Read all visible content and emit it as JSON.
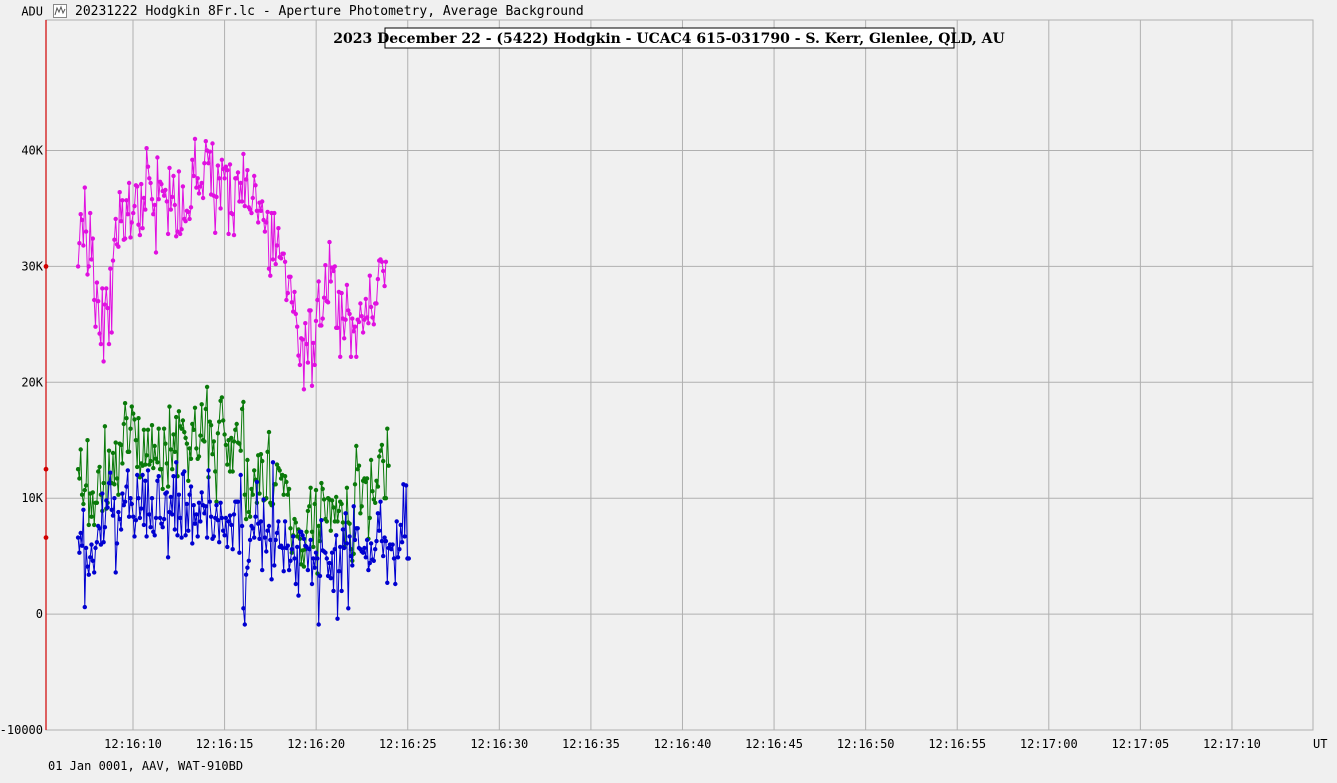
{
  "window": {
    "title": "20231222 Hodgkin 8Fr.lc - Aperture Photometry, Average Background"
  },
  "footer": {
    "text": "01 Jan 0001, AAV, WAT-910BD"
  },
  "colors": {
    "target": "#e010e0",
    "comp": "#0a7a0a",
    "check": "#0000d0",
    "axis": "#d00000",
    "grid": "#b0b0b0"
  },
  "chart_data": {
    "type": "line",
    "title": "2023 December 22 - (5422) Hodgkin - UCAC4 615-031790 - S. Kerr, Glenlee, QLD, AU",
    "ylabel": "ADU",
    "xlabel": "UT",
    "ylim": [
      -10000,
      52000
    ],
    "x_ticks": [
      "12:16:10",
      "12:16:15",
      "12:16:20",
      "12:16:25",
      "12:16:30",
      "12:16:35",
      "12:16:40",
      "12:16:45",
      "12:16:50",
      "12:16:55",
      "12:17:00",
      "12:17:05",
      "12:17:10"
    ],
    "y_ticks": [
      {
        "label": "ADU",
        "value": 52000
      },
      {
        "label": "40K",
        "value": 40000
      },
      {
        "label": "30K",
        "value": 30000
      },
      {
        "label": "20K",
        "value": 20000
      },
      {
        "label": "10K",
        "value": 10000
      },
      {
        "label": "0",
        "value": 0
      },
      {
        "label": "-10000",
        "value": -10000
      }
    ],
    "grid": true,
    "x_start_seconds": 7,
    "sample_seconds": 0.0734,
    "series": [
      {
        "color": "#e010e0",
        "values": [
          30000,
          32000,
          34500,
          34000,
          31800,
          36800,
          33000,
          29300,
          30000,
          34600,
          30600,
          32400,
          27100,
          24800,
          28600,
          27000,
          24200,
          23300,
          28100,
          21800,
          26700,
          28100,
          26400,
          23300,
          29800,
          24300,
          30500,
          32300,
          34100,
          31900,
          31700,
          36400,
          33900,
          35700,
          32300,
          32400,
          35700,
          34500,
          37200,
          32500,
          33800,
          34600,
          35200,
          37000,
          36900,
          33600,
          32700,
          37100,
          33300,
          35900,
          34900,
          40200,
          38600,
          37600,
          37200,
          35800,
          34500,
          35300,
          31200,
          39400,
          35800,
          37300,
          37100,
          36500,
          36100,
          36600,
          35600,
          32800,
          38500,
          34900,
          36000,
          37800,
          35300,
          32600,
          33000,
          38200,
          32800,
          33200,
          36900,
          34100,
          33900,
          34800,
          34700,
          34100,
          35100,
          39200,
          37800,
          41000,
          36800,
          37600,
          36300,
          36900,
          37200,
          35900,
          38900,
          40800,
          40000,
          38900,
          39900,
          36200,
          40600,
          36100,
          32900,
          36000,
          38700,
          37600,
          35000,
          39200,
          38400,
          37600,
          38600,
          38300,
          32800,
          38800,
          34600,
          34500,
          32700,
          37600,
          37600,
          38100,
          35600,
          37200,
          35600,
          39700,
          35200,
          37500,
          38300,
          35100,
          34900,
          34600,
          35900,
          37800,
          37000,
          34800,
          33800,
          35500,
          34800,
          35600,
          34000,
          33000,
          33800,
          34700,
          29800,
          29200,
          34600,
          30600,
          34600,
          30200,
          31800,
          33300,
          30800,
          30700,
          31100,
          31100,
          30400,
          27100,
          27700,
          29100,
          29100,
          26900,
          26100,
          27800,
          25900,
          24800,
          22300,
          21500,
          23800,
          23700,
          19400,
          25100,
          23300,
          21700,
          26200,
          26200,
          19700,
          23400,
          21500,
          25300,
          27100,
          28700,
          24900,
          24900,
          25500,
          27300,
          30100,
          27000,
          26900,
          32100,
          28700,
          29900,
          29600,
          30000,
          24700,
          24700,
          27800,
          22200,
          27700,
          25500,
          23800,
          25400,
          28400,
          26200,
          25900,
          22200,
          25500,
          24400,
          24800,
          22200,
          25400,
          25200,
          26800,
          25700,
          24300,
          25400,
          27200,
          25600,
          25100,
          29200,
          26500,
          25600,
          25000,
          26800,
          26800,
          28900,
          30500,
          30600,
          30400,
          29600,
          28300,
          30400
        ]
      },
      {
        "color": "#0a7a0a",
        "values": [
          12500,
          11700,
          14200,
          10300,
          9500,
          10700,
          11100,
          15000,
          7700,
          10400,
          8400,
          10500,
          7700,
          9600,
          9600,
          12300,
          12700,
          10300,
          8900,
          11300,
          16200,
          9100,
          9600,
          14100,
          11300,
          11300,
          13900,
          11200,
          14800,
          11700,
          10300,
          14700,
          14600,
          13000,
          16400,
          18200,
          16900,
          14000,
          14000,
          16000,
          17900,
          17300,
          16800,
          15000,
          12700,
          16900,
          11800,
          13000,
          12800,
          15900,
          12900,
          13700,
          15900,
          12900,
          13200,
          16300,
          12600,
          14500,
          13400,
          13100,
          16000,
          12500,
          12500,
          10800,
          16000,
          14700,
          13000,
          11000,
          17900,
          14200,
          12500,
          15500,
          14000,
          17000,
          11900,
          17500,
          16200,
          16000,
          16700,
          15700,
          15200,
          14700,
          11500,
          14300,
          13400,
          16400,
          15900,
          17800,
          14300,
          13400,
          13600,
          15400,
          18100,
          15000,
          14900,
          17700,
          19600,
          11800,
          16600,
          16300,
          13800,
          14900,
          12300,
          9700,
          15600,
          16600,
          18400,
          18700,
          16700,
          15500,
          14600,
          12900,
          15000,
          12300,
          15200,
          12300,
          14900,
          15900,
          16400,
          14800,
          14700,
          14100,
          17700,
          18300,
          10300,
          8200,
          13300,
          8800,
          8400,
          10800,
          10300,
          12400,
          11600,
          9600,
          13700,
          10400,
          13800,
          13200,
          9800,
          9900,
          10000,
          14000,
          15700,
          9600,
          9400,
          9500,
          11200,
          11200,
          12900,
          12600,
          12400,
          11700,
          12000,
          10300,
          11900,
          11400,
          10300,
          10800,
          7400,
          5300,
          6800,
          8200,
          7900,
          6700,
          7300,
          6500,
          4300,
          5500,
          4100,
          5600,
          7100,
          8900,
          9300,
          10900,
          7100,
          5800,
          9500,
          10700,
          3500,
          7600,
          6300,
          11300,
          10800,
          9900,
          8200,
          8000,
          10000,
          9900,
          7200,
          9800,
          9200,
          8000,
          10100,
          8000,
          8900,
          9700,
          9500,
          7900,
          5800,
          6100,
          10900,
          7900,
          7800,
          5600,
          4600,
          5200,
          11200,
          14500,
          12500,
          12800,
          8700,
          9300,
          11500,
          11700,
          11400,
          11700,
          6500,
          8300,
          13300,
          10600,
          9900,
          9600,
          11500,
          11000,
          13600,
          14100,
          14600,
          13200,
          10000,
          10000,
          16000,
          12800
        ]
      },
      {
        "color": "#0000d0",
        "values": [
          6600,
          5300,
          7000,
          5900,
          9000,
          600,
          5700,
          4100,
          3400,
          4900,
          6000,
          4600,
          3600,
          5700,
          6200,
          7600,
          7400,
          6000,
          10400,
          6200,
          7500,
          9800,
          9200,
          11300,
          12200,
          9000,
          8500,
          10000,
          3600,
          6100,
          8800,
          8200,
          7300,
          10400,
          9400,
          9700,
          11000,
          12400,
          8400,
          10000,
          9500,
          8400,
          6700,
          8100,
          12000,
          10000,
          8300,
          9100,
          12000,
          7700,
          11500,
          6700,
          12400,
          8600,
          7500,
          10000,
          7100,
          6800,
          8300,
          11500,
          11900,
          8300,
          7800,
          7500,
          8200,
          10400,
          10500,
          4900,
          8800,
          10100,
          8600,
          11900,
          7300,
          13100,
          6800,
          10300,
          8300,
          6600,
          12100,
          12300,
          6800,
          9500,
          7200,
          10300,
          11000,
          6100,
          9400,
          7800,
          8600,
          6700,
          9600,
          8000,
          10500,
          9400,
          8700,
          9300,
          6600,
          12400,
          9700,
          8400,
          6500,
          6700,
          8300,
          9400,
          8100,
          6200,
          9600,
          8300,
          7200,
          6800,
          8300,
          5800,
          8000,
          8500,
          7700,
          5600,
          8600,
          9700,
          9700,
          9700,
          5300,
          12000,
          7600,
          500,
          -900,
          3400,
          4000,
          4600,
          6400,
          7600,
          7400,
          6600,
          8400,
          11400,
          7800,
          6500,
          8000,
          3800,
          9900,
          6600,
          5400,
          7200,
          7600,
          6400,
          3000,
          13100,
          4200,
          6400,
          7000,
          8000,
          5800,
          5900,
          5700,
          3700,
          8000,
          5700,
          5900,
          3800,
          4600,
          5600,
          6700,
          4800,
          2600,
          5800,
          1600,
          7100,
          7100,
          6800,
          6500,
          5900,
          5800,
          3800,
          5600,
          6400,
          2600,
          4800,
          4000,
          5300,
          4800,
          -900,
          3300,
          8100,
          5500,
          5400,
          5300,
          4800,
          3300,
          4400,
          3100,
          5300,
          2000,
          5600,
          6800,
          -400,
          3700,
          5800,
          2000,
          7300,
          5700,
          8700,
          6100,
          500,
          6700,
          5000,
          4200,
          9300,
          6400,
          7400,
          7400,
          5700,
          5600,
          5400,
          5300,
          5700,
          4900,
          6400,
          3800,
          4400,
          6100,
          4700,
          4600,
          5600,
          6300,
          8700,
          7200,
          9700,
          6300,
          5000,
          6600,
          6300,
          2700,
          5700,
          6000,
          5600,
          6000,
          4800,
          2600,
          8000,
          4900,
          5600,
          7700,
          6200,
          11200,
          6700,
          11100,
          4800,
          4800
        ]
      }
    ]
  }
}
